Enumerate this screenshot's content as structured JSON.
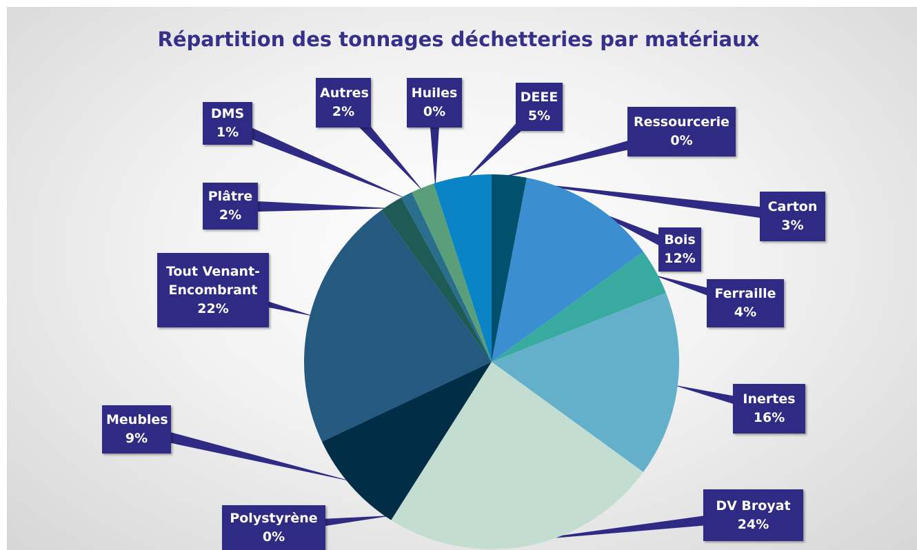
{
  "chart_data": {
    "type": "pie",
    "title": "Répartition des tonnages déchetteries par matériaux",
    "categories": [
      "Carton",
      "Bois",
      "Ferraille",
      "Inertes",
      "DV Broyat",
      "Polystyrène",
      "Meubles",
      "Tout Venant-Encombrant",
      "Plâtre",
      "DMS",
      "Autres",
      "Huiles",
      "DEEE",
      "Ressourcerie"
    ],
    "values": [
      3,
      12,
      4,
      16,
      24,
      0,
      9,
      22,
      2,
      1,
      2,
      0,
      5,
      0
    ],
    "value_labels": [
      "3%",
      "12%",
      "4%",
      "16%",
      "24%",
      "0%",
      "9%",
      "22%",
      "2%",
      "1%",
      "2%",
      "0%",
      "5%",
      "0%"
    ],
    "colors": [
      "#01506e",
      "#3b8fd0",
      "#38aaa0",
      "#64afca",
      "#c4ddd1",
      "#2aa8b0",
      "#022d46",
      "#245a80",
      "#1e5a56",
      "#2a6e8e",
      "#5b9e7a",
      "#2e6c4a",
      "#0a84c6",
      "#4a9ed8"
    ],
    "label_color": "#2f2b85"
  }
}
